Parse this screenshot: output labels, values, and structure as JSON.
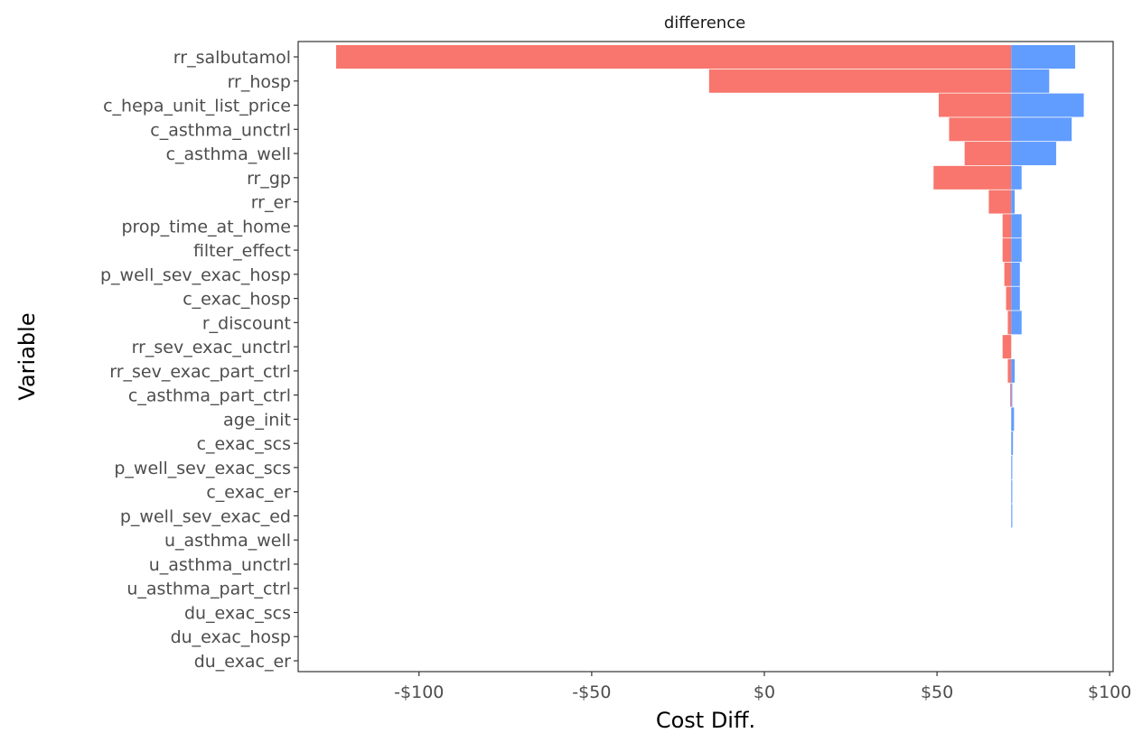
{
  "chart_data": {
    "type": "bar",
    "orientation": "horizontal",
    "subtitle": "difference",
    "xlabel": "Cost Diff.",
    "ylabel": "Variable",
    "xlim": [
      -135,
      101
    ],
    "baseline": 71.5,
    "x_ticks": [
      {
        "value": -100,
        "label": "-$100"
      },
      {
        "value": -50,
        "label": "-$50"
      },
      {
        "value": 0,
        "label": "$0"
      },
      {
        "value": 50,
        "label": "$50"
      },
      {
        "value": 100,
        "label": "$100"
      }
    ],
    "grid": false,
    "legend": "none",
    "colors": {
      "low": "#F8766D",
      "high": "#619CFF"
    },
    "categories": [
      "rr_salbutamol",
      "rr_hosp",
      "c_hepa_unit_list_price",
      "c_asthma_unctrl",
      "c_asthma_well",
      "rr_gp",
      "rr_er",
      "prop_time_at_home",
      "filter_effect",
      "p_well_sev_exac_hosp",
      "c_exac_hosp",
      "r_discount",
      "rr_sev_exac_unctrl",
      "rr_sev_exac_part_ctrl",
      "c_asthma_part_ctrl",
      "age_init",
      "c_exac_scs",
      "p_well_sev_exac_scs",
      "c_exac_er",
      "p_well_sev_exac_ed",
      "u_asthma_well",
      "u_asthma_unctrl",
      "u_asthma_part_ctrl",
      "du_exac_scs",
      "du_exac_hosp",
      "du_exac_er"
    ],
    "series": [
      {
        "values": [
          -124,
          -16,
          50.5,
          53.5,
          58,
          49,
          65,
          69,
          69,
          69.5,
          70,
          70.5,
          69,
          70.5,
          71.2,
          71.5,
          71.5,
          71.5,
          71.5,
          71.5,
          71.5,
          71.5,
          71.5,
          71.5,
          71.5,
          71.5
        ]
      },
      {
        "values": [
          90,
          82.5,
          92.5,
          89,
          84.5,
          74.5,
          72.5,
          74.5,
          74.5,
          74,
          74,
          74.5,
          71.5,
          72.5,
          71.8,
          72.3,
          72,
          71.8,
          71.8,
          71.8,
          71.5,
          71.5,
          71.5,
          71.5,
          71.5,
          71.5
        ]
      }
    ]
  }
}
